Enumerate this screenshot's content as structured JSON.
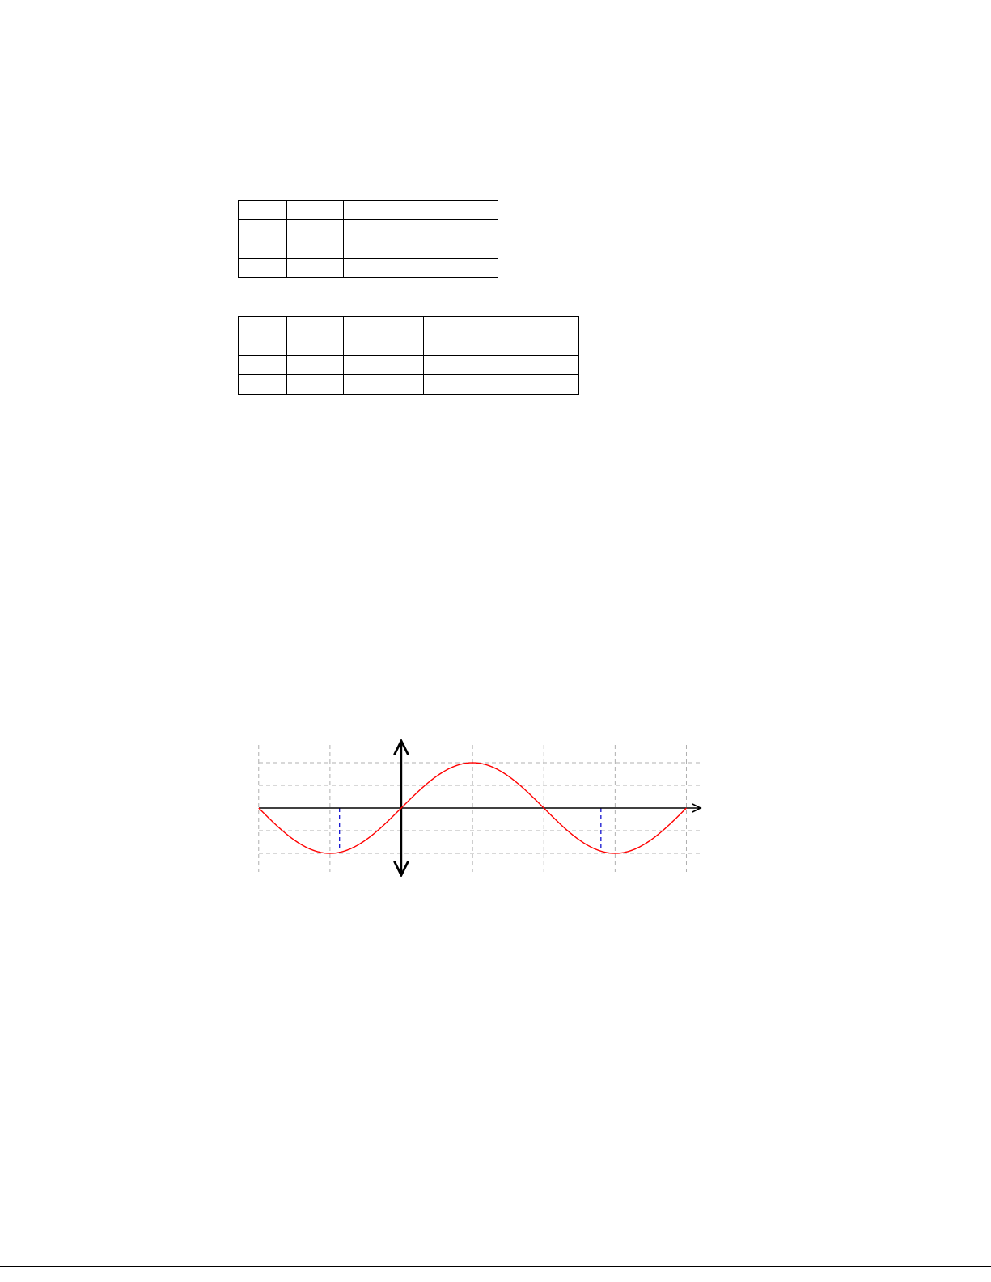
{
  "tables": [
    {
      "rows": [
        [
          "",
          "",
          ""
        ],
        [
          "",
          "",
          ""
        ],
        [
          "",
          "",
          ""
        ],
        [
          "",
          "",
          ""
        ]
      ]
    },
    {
      "rows": [
        [
          "",
          "",
          "",
          ""
        ],
        [
          "",
          "",
          "",
          ""
        ],
        [
          "",
          "",
          "",
          ""
        ],
        [
          "",
          "",
          "",
          ""
        ]
      ]
    }
  ],
  "chart_data": {
    "type": "line",
    "title": "",
    "xlabel": "",
    "ylabel": "",
    "xlim": [
      -3.14159,
      6.28318
    ],
    "ylim": [
      -1.4,
      2.1
    ],
    "grid": true,
    "x_gridlines": [
      -3.14159,
      -1.5708,
      0,
      1.5708,
      3.14159,
      4.71239,
      6.28318
    ],
    "y_gridlines": [
      -1,
      -0.5,
      0.5,
      1
    ],
    "series": [
      {
        "function": "y = sin(x)",
        "color": "#ff0000",
        "x_range": [
          -3.14159,
          6.28318
        ],
        "points": [
          [
            -3.14159,
            0
          ],
          [
            -2.35619,
            -0.7071
          ],
          [
            -1.5708,
            -1
          ],
          [
            -0.7854,
            -0.7071
          ],
          [
            0,
            0
          ],
          [
            0.7854,
            0.7071
          ],
          [
            1.5708,
            1
          ],
          [
            2.35619,
            0.7071
          ],
          [
            3.14159,
            0
          ],
          [
            3.92699,
            -0.7071
          ],
          [
            4.71239,
            -1
          ],
          [
            5.49779,
            -0.7071
          ],
          [
            6.28318,
            0
          ]
        ]
      }
    ],
    "reference_lines": [
      {
        "x": -1.36,
        "color": "#0000cc",
        "style": "dashed"
      },
      {
        "x": 4.4,
        "color": "#0000cc",
        "style": "dashed"
      }
    ],
    "colors": {
      "axis": "#000000",
      "grid": "#b0b0b0",
      "curve": "#ff0000",
      "reference": "#0000cc"
    }
  }
}
